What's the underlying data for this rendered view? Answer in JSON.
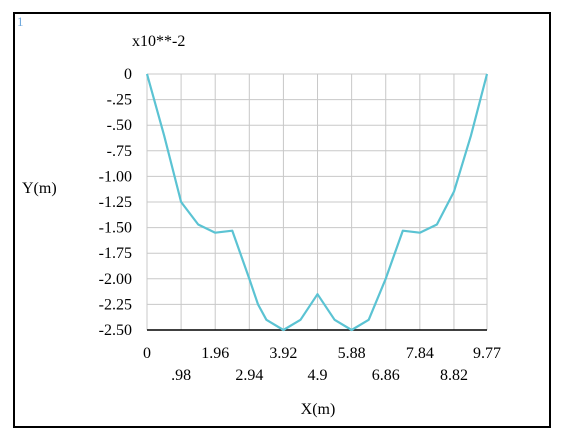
{
  "panel": {
    "number": "1"
  },
  "chart_data": {
    "type": "line",
    "title": "",
    "xlabel": "X(m)",
    "ylabel": "Y(m)",
    "y_multiplier": "x10**-2",
    "xlim": [
      0,
      9.77
    ],
    "ylim": [
      -2.5,
      0
    ],
    "x_ticks": [
      0,
      0.98,
      1.96,
      2.94,
      3.92,
      4.9,
      5.88,
      6.86,
      7.84,
      8.82,
      9.77
    ],
    "x_tick_labels": [
      "0",
      ".98",
      "1.96",
      "2.94",
      "3.92",
      "4.9",
      "5.88",
      "6.86",
      "7.84",
      "8.82",
      "9.77"
    ],
    "y_ticks": [
      0,
      -0.25,
      -0.5,
      -0.75,
      -1.0,
      -1.25,
      -1.5,
      -1.75,
      -2.0,
      -2.25,
      -2.5
    ],
    "y_tick_labels": [
      "0",
      "-.25",
      "-.50",
      "-.75",
      "-1.00",
      "-1.25",
      "-1.50",
      "-1.75",
      "-2.00",
      "-2.25",
      "-2.50"
    ],
    "grid": true,
    "series": [
      {
        "color": "#5bc3d3",
        "x": [
          0,
          0.49,
          0.98,
          1.47,
          1.96,
          2.45,
          2.94,
          3.19,
          3.43,
          3.92,
          4.41,
          4.9,
          5.39,
          5.88,
          6.37,
          6.86,
          7.35,
          7.84,
          8.33,
          8.82,
          9.31,
          9.77
        ],
        "y": [
          0,
          -0.6,
          -1.25,
          -1.47,
          -1.55,
          -1.53,
          -2.0,
          -2.25,
          -2.4,
          -2.5,
          -2.4,
          -2.15,
          -2.4,
          -2.5,
          -2.4,
          -2.0,
          -1.53,
          -1.55,
          -1.47,
          -1.15,
          -0.6,
          0
        ]
      }
    ]
  }
}
